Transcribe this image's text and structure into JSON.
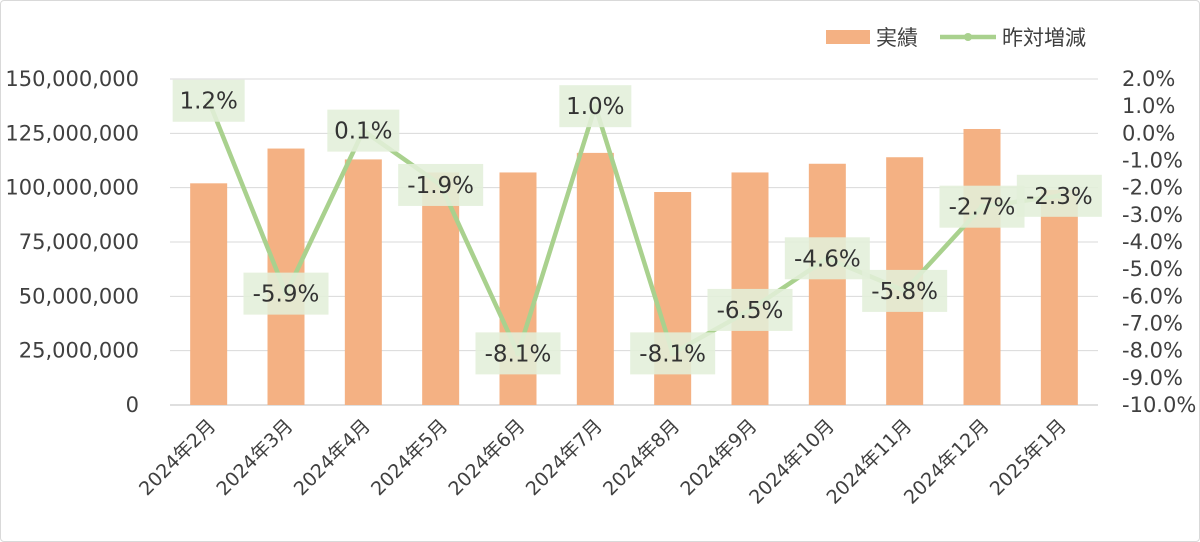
{
  "chart_data": {
    "type": "bar",
    "categories": [
      "2024年2月",
      "2024年3月",
      "2024年4月",
      "2024年5月",
      "2024年6月",
      "2024年7月",
      "2024年8月",
      "2024年9月",
      "2024年10月",
      "2024年11月",
      "2024年12月",
      "2025年1月"
    ],
    "series": [
      {
        "name": "実績",
        "type": "bar",
        "axis": "left",
        "color": "#f4b183",
        "values": [
          102000000,
          118000000,
          113000000,
          107000000,
          107000000,
          116000000,
          98000000,
          107000000,
          111000000,
          114000000,
          127000000,
          99000000
        ]
      },
      {
        "name": "昨対増減",
        "type": "line",
        "axis": "right",
        "color": "#a9d18e",
        "values": [
          0.012,
          -0.059,
          0.001,
          -0.019,
          -0.081,
          0.01,
          -0.081,
          -0.065,
          -0.046,
          -0.058,
          -0.027,
          -0.023
        ],
        "labels": [
          "1.2%",
          "-5.9%",
          "0.1%",
          "-1.9%",
          "-8.1%",
          "1.0%",
          "-8.1%",
          "-6.5%",
          "-4.6%",
          "-5.8%",
          "-2.7%",
          "-2.3%"
        ]
      }
    ],
    "y_left": {
      "range": [
        0,
        150000000
      ],
      "ticks": [
        0,
        25000000,
        50000000,
        75000000,
        100000000,
        125000000,
        150000000
      ],
      "tick_labels": [
        "0",
        "25,000,000",
        "50,000,000",
        "75,000,000",
        "100,000,000",
        "125,000,000",
        "150,000,000"
      ]
    },
    "y_right": {
      "range": [
        -0.1,
        0.02
      ],
      "ticks": [
        0.02,
        0.01,
        0.0,
        -0.01,
        -0.02,
        -0.03,
        -0.04,
        -0.05,
        -0.06,
        -0.07,
        -0.08,
        -0.09,
        -0.1
      ],
      "tick_labels": [
        "2.0%",
        "1.0%",
        "0.0%",
        "-1.0%",
        "-2.0%",
        "-3.0%",
        "-4.0%",
        "-5.0%",
        "-6.0%",
        "-7.0%",
        "-8.0%",
        "-9.0%",
        "-10.0%"
      ]
    },
    "grid": true,
    "legend": "top-right",
    "label_box_color": "#e2efda"
  }
}
